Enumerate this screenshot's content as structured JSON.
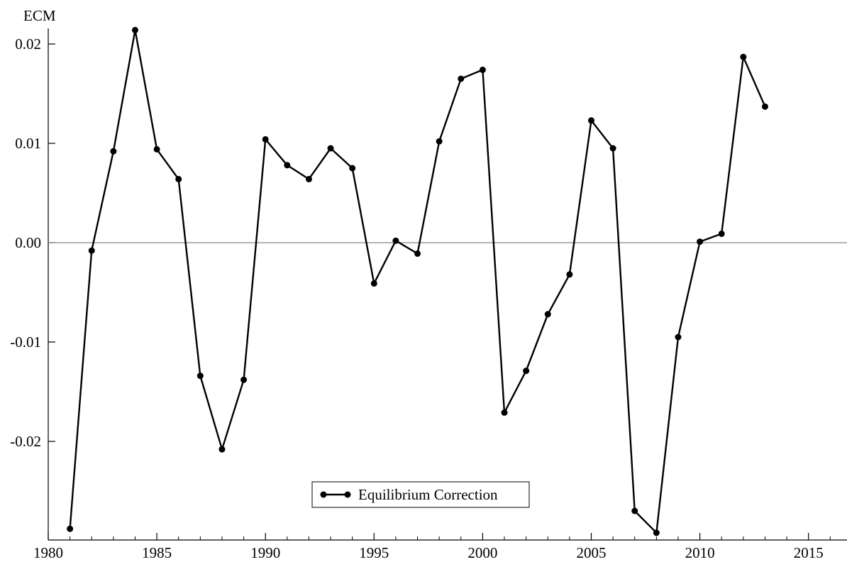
{
  "chart_data": {
    "type": "line",
    "title": "",
    "ylabel": "ECM",
    "xlabel": "",
    "xlim": [
      1980,
      2017
    ],
    "ylim": [
      -0.0295,
      0.0215
    ],
    "x_ticks": [
      1980,
      1985,
      1990,
      1995,
      2000,
      2005,
      2010,
      2015
    ],
    "x_tick_labels": [
      "1980",
      "1985",
      "1990",
      "1995",
      "2000",
      "2005",
      "2010",
      "2015"
    ],
    "y_ticks": [
      0.02,
      0.01,
      0.0,
      -0.01,
      -0.02
    ],
    "y_tick_labels": [
      "0.02",
      "0.01",
      "0.00",
      "-0.01",
      "-0.02"
    ],
    "reference_line": 0.0,
    "grid": false,
    "legend_position": "bottom-center",
    "series": [
      {
        "name": "Equilibrium Correction",
        "color": "#000000",
        "marker": "circle",
        "x": [
          1981,
          1982,
          1983,
          1984,
          1985,
          1986,
          1987,
          1988,
          1989,
          1990,
          1991,
          1992,
          1993,
          1994,
          1995,
          1996,
          1997,
          1998,
          1999,
          2000,
          2001,
          2002,
          2003,
          2004,
          2005,
          2006,
          2007,
          2008,
          2009,
          2010,
          2011,
          2012,
          2013
        ],
        "y": [
          -0.0288,
          -0.0008,
          0.0092,
          0.0214,
          0.0094,
          0.0064,
          -0.0134,
          -0.0208,
          -0.0138,
          0.0104,
          0.0078,
          0.0064,
          0.0095,
          0.0075,
          -0.0041,
          0.0002,
          -0.0011,
          0.0102,
          0.0165,
          0.0174,
          -0.0171,
          -0.0129,
          -0.0072,
          -0.0032,
          0.0123,
          0.0095,
          -0.027,
          -0.0292,
          -0.0095,
          0.0001,
          0.0009,
          0.0187,
          0.0137
        ]
      }
    ]
  }
}
